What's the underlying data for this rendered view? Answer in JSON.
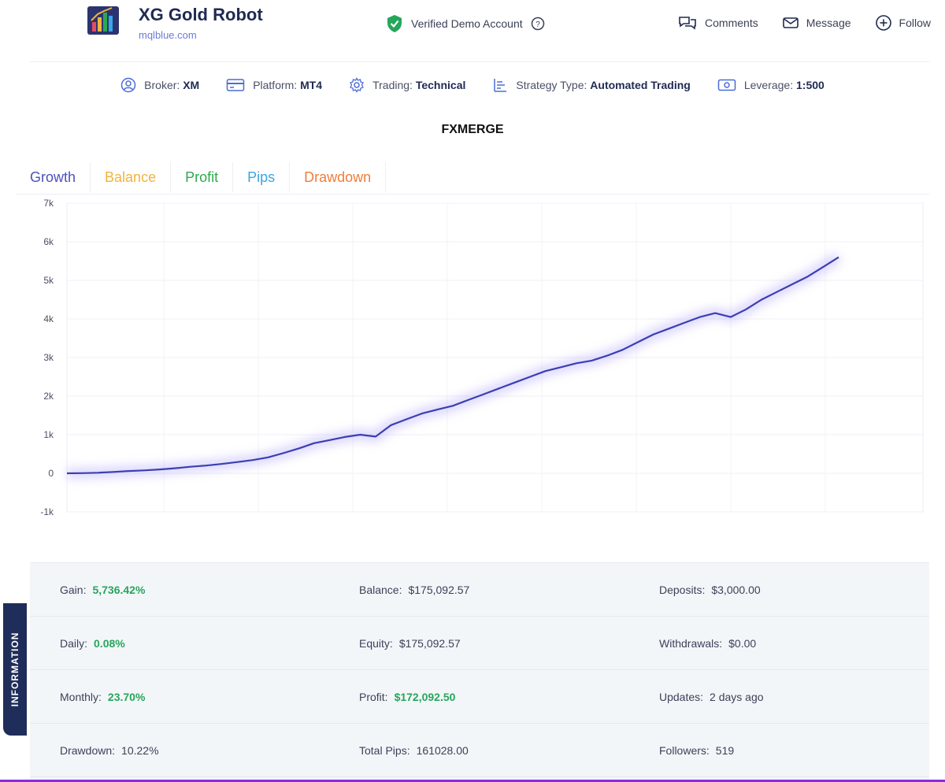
{
  "header": {
    "title": "XG Gold Robot",
    "subtitle": "mqlblue.com",
    "verified": "Verified Demo Account",
    "actions": [
      {
        "label": "Comments",
        "icon": "comments-icon"
      },
      {
        "label": "Message",
        "icon": "message-icon"
      },
      {
        "label": "Follow",
        "icon": "plus-circle-icon"
      }
    ]
  },
  "info_strip": [
    {
      "label": "Broker:",
      "value": "XM",
      "icon": "user-circle-icon"
    },
    {
      "label": "Platform:",
      "value": "MT4",
      "icon": "card-icon"
    },
    {
      "label": "Trading:",
      "value": "Technical",
      "icon": "gear-icon"
    },
    {
      "label": "Strategy Type:",
      "value": "Automated Trading",
      "icon": "list-icon"
    },
    {
      "label": "Leverage:",
      "value": "1:500",
      "icon": "money-icon"
    }
  ],
  "chart_title": "FXMERGE",
  "tabs": [
    {
      "label": "Growth",
      "color": "#4a52b8"
    },
    {
      "label": "Balance",
      "color": "#f2b33d"
    },
    {
      "label": "Profit",
      "color": "#2ea84f"
    },
    {
      "label": "Pips",
      "color": "#3aa6e6"
    },
    {
      "label": "Drawdown",
      "color": "#f07d3a"
    }
  ],
  "chart_data": {
    "type": "line",
    "title": "FXMERGE",
    "xlabel": "",
    "ylabel": "",
    "ylim": [
      -1000,
      7000
    ],
    "yticks": [
      -1000,
      0,
      1000,
      2000,
      3000,
      4000,
      5000,
      6000,
      7000
    ],
    "ytick_labels": [
      "-1k",
      "0",
      "1k",
      "2k",
      "3k",
      "4k",
      "5k",
      "6k",
      "7k"
    ],
    "grid": true,
    "series": [
      {
        "color": "#3b3fb0",
        "x": [
          0,
          2,
          4,
          6,
          8,
          10,
          12,
          14,
          16,
          18,
          20,
          22,
          24,
          26,
          28,
          30,
          32,
          34,
          36,
          38,
          40,
          42,
          44,
          46,
          48,
          50,
          52,
          54,
          56,
          58,
          60,
          62,
          64,
          66,
          68,
          70,
          72,
          74,
          76,
          78,
          80,
          82,
          84,
          86,
          88,
          90,
          92,
          94,
          96,
          98,
          100
        ],
        "y": [
          0,
          5,
          15,
          35,
          60,
          75,
          100,
          130,
          170,
          200,
          240,
          290,
          340,
          410,
          520,
          640,
          780,
          860,
          940,
          1000,
          950,
          1250,
          1400,
          1550,
          1650,
          1750,
          1900,
          2050,
          2200,
          2350,
          2500,
          2650,
          2750,
          2850,
          2920,
          3050,
          3200,
          3400,
          3600,
          3750,
          3900,
          4050,
          4150,
          4050,
          4250,
          4500,
          4700,
          4900,
          5100,
          5350,
          5600
        ]
      }
    ]
  },
  "info_panel": {
    "tab_label": "INFORMATION",
    "rows": [
      [
        {
          "label": "Gain:",
          "value": "5,736.42%",
          "green": true
        },
        {
          "label": "Balance:",
          "value": "$175,092.57",
          "green": false
        },
        {
          "label": "Deposits:",
          "value": "$3,000.00",
          "green": false
        }
      ],
      [
        {
          "label": "Daily:",
          "value": "0.08%",
          "green": true
        },
        {
          "label": "Equity:",
          "value": "$175,092.57",
          "green": false
        },
        {
          "label": "Withdrawals:",
          "value": "$0.00",
          "green": false
        }
      ],
      [
        {
          "label": "Monthly:",
          "value": "23.70%",
          "green": true
        },
        {
          "label": "Profit:",
          "value": "$172,092.50",
          "green": true
        },
        {
          "label": "Updates:",
          "value": "2 days ago",
          "green": false
        }
      ],
      [
        {
          "label": "Drawdown:",
          "value": "10.22%",
          "green": false
        },
        {
          "label": "Total Pips:",
          "value": "161028.00",
          "green": false
        },
        {
          "label": "Followers:",
          "value": "519",
          "green": false
        }
      ]
    ]
  }
}
